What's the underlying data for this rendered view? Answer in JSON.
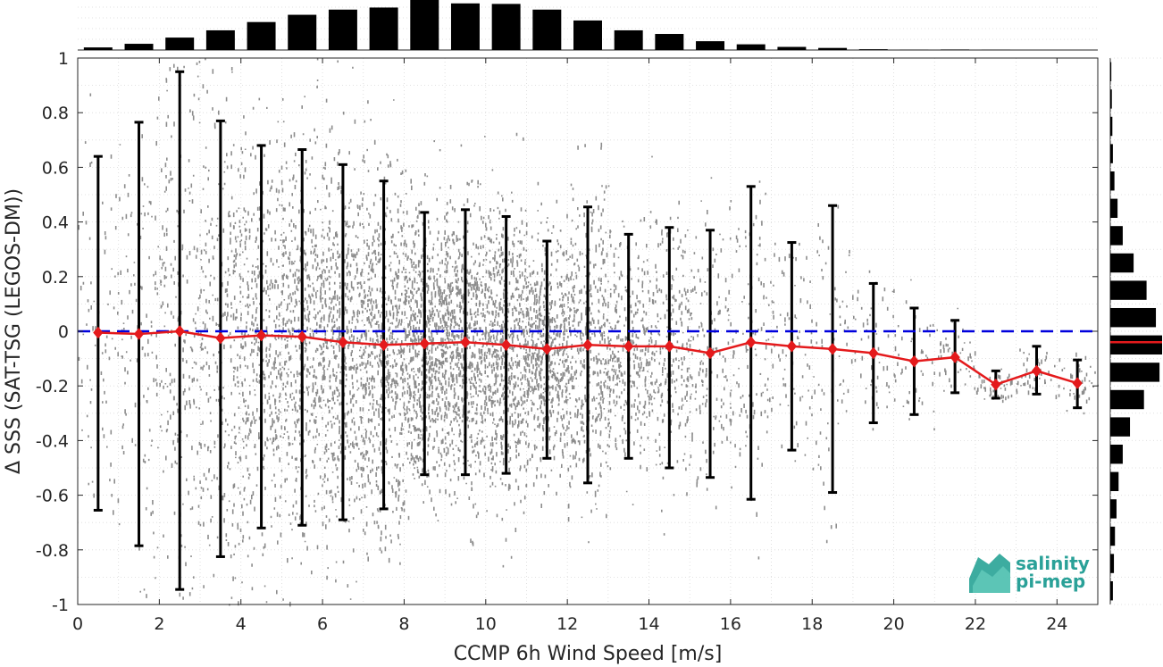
{
  "chart_data": {
    "type": "scatter",
    "xlabel": "CCMP 6h Wind Speed [m/s]",
    "ylabel": "Δ SSS (SAT-TSG (LEGOS-DM))",
    "xlim": [
      0,
      25
    ],
    "ylim": [
      -1,
      1
    ],
    "xticks": [
      "0",
      "2",
      "4",
      "6",
      "8",
      "10",
      "12",
      "14",
      "16",
      "18",
      "20",
      "22",
      "24"
    ],
    "yticks": [
      "1",
      "0.8",
      "0.6",
      "0.4",
      "0.2",
      "0",
      "-0.2",
      "-0.4",
      "-0.6",
      "-0.8",
      "-1"
    ],
    "grid": true,
    "zero_line": {
      "y": 0,
      "style": "dashed",
      "color": "#0000dd"
    },
    "bin_stats": {
      "color": "#e41a1c",
      "x": [
        0.5,
        1.5,
        2.5,
        3.5,
        4.5,
        5.5,
        6.5,
        7.5,
        8.5,
        9.5,
        10.5,
        11.5,
        12.5,
        13.5,
        14.5,
        15.5,
        16.5,
        17.5,
        18.5,
        19.5,
        20.5,
        21.5,
        22.5,
        23.5,
        24.5
      ],
      "mean": [
        -0.005,
        -0.01,
        0.0,
        -0.025,
        -0.015,
        -0.02,
        -0.04,
        -0.05,
        -0.045,
        -0.04,
        -0.05,
        -0.065,
        -0.05,
        -0.055,
        -0.055,
        -0.08,
        -0.04,
        -0.055,
        -0.065,
        -0.08,
        -0.11,
        -0.095,
        -0.195,
        -0.145,
        -0.19
      ],
      "upper": [
        0.64,
        0.765,
        0.95,
        0.77,
        0.68,
        0.665,
        0.61,
        0.55,
        0.435,
        0.445,
        0.42,
        0.33,
        0.455,
        0.355,
        0.38,
        0.37,
        0.53,
        0.325,
        0.46,
        0.175,
        0.085,
        0.04,
        -0.145,
        -0.055,
        -0.105
      ],
      "lower": [
        -0.655,
        -0.785,
        -0.945,
        -0.825,
        -0.72,
        -0.71,
        -0.69,
        -0.65,
        -0.525,
        -0.525,
        -0.52,
        -0.465,
        -0.555,
        -0.465,
        -0.5,
        -0.535,
        -0.615,
        -0.435,
        -0.59,
        -0.335,
        -0.305,
        -0.225,
        -0.245,
        -0.23,
        -0.28
      ]
    },
    "x_histogram": {
      "bin_centers": [
        0.5,
        1.5,
        2.5,
        3.5,
        4.5,
        5.5,
        6.5,
        7.5,
        8.5,
        9.5,
        10.5,
        11.5,
        12.5,
        13.5,
        14.5,
        15.5,
        16.5,
        17.5,
        18.5,
        19.5,
        20.5,
        21.5,
        22.5,
        23.5,
        24.5
      ],
      "relative_counts": [
        0.05,
        0.12,
        0.24,
        0.38,
        0.54,
        0.68,
        0.78,
        0.82,
        1.0,
        0.9,
        0.89,
        0.78,
        0.57,
        0.38,
        0.31,
        0.17,
        0.11,
        0.06,
        0.04,
        0.015,
        0.005,
        0.01,
        0.005,
        0.0,
        0.0
      ]
    },
    "y_histogram": {
      "bin_centers": [
        0.95,
        0.85,
        0.75,
        0.65,
        0.55,
        0.45,
        0.35,
        0.25,
        0.15,
        0.05,
        -0.05,
        -0.15,
        -0.25,
        -0.35,
        -0.45,
        -0.55,
        -0.65,
        -0.75,
        -0.85,
        -0.95
      ],
      "relative_counts": [
        0.02,
        0.03,
        0.04,
        0.05,
        0.08,
        0.14,
        0.24,
        0.45,
        0.7,
        0.88,
        1.0,
        0.95,
        0.65,
        0.38,
        0.24,
        0.16,
        0.12,
        0.09,
        0.07,
        0.05
      ],
      "mean_marker": -0.04
    }
  },
  "logo": {
    "line1": "salinity",
    "line2": "pi-mep",
    "color": "#2aa198"
  }
}
